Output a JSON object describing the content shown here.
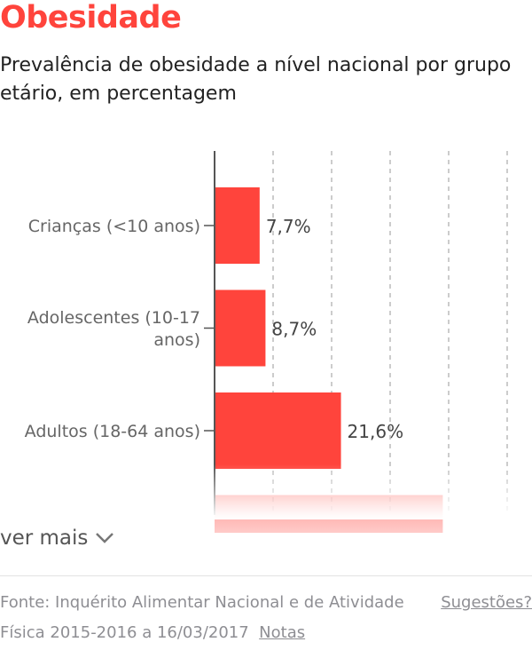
{
  "header": {
    "title": "Obesidade",
    "subtitle": "Prevalência de obesidade a nível nacional por grupo etário, em percentagem"
  },
  "chart_data": {
    "type": "bar",
    "orientation": "horizontal",
    "categories": [
      "Crianças (<10 anos)",
      "Adolescentes (10-17 anos)",
      "Adultos (18-64 anos)",
      ""
    ],
    "category_lines": [
      [
        "Crianças (<10 anos)"
      ],
      [
        "Adolescentes (10-17",
        "anos)"
      ],
      [
        "Adultos (18-64 anos)"
      ],
      []
    ],
    "values": [
      7.7,
      8.7,
      21.6,
      39
    ],
    "labels": [
      "7,7%",
      "8,7%",
      "21,6%",
      ""
    ],
    "xlim": [
      0,
      50
    ],
    "gridlines": [
      10,
      20,
      30,
      40,
      50
    ],
    "grid": true,
    "bar_color": "#ff443c"
  },
  "footer": {
    "more_label": "ver mais",
    "source": "Fonte: Inquérito Alimentar Nacional e de Atividade Física 2015-2016 a 16/03/2017",
    "notes_label": "Notas",
    "suggestions_label": "Sugestões?"
  }
}
